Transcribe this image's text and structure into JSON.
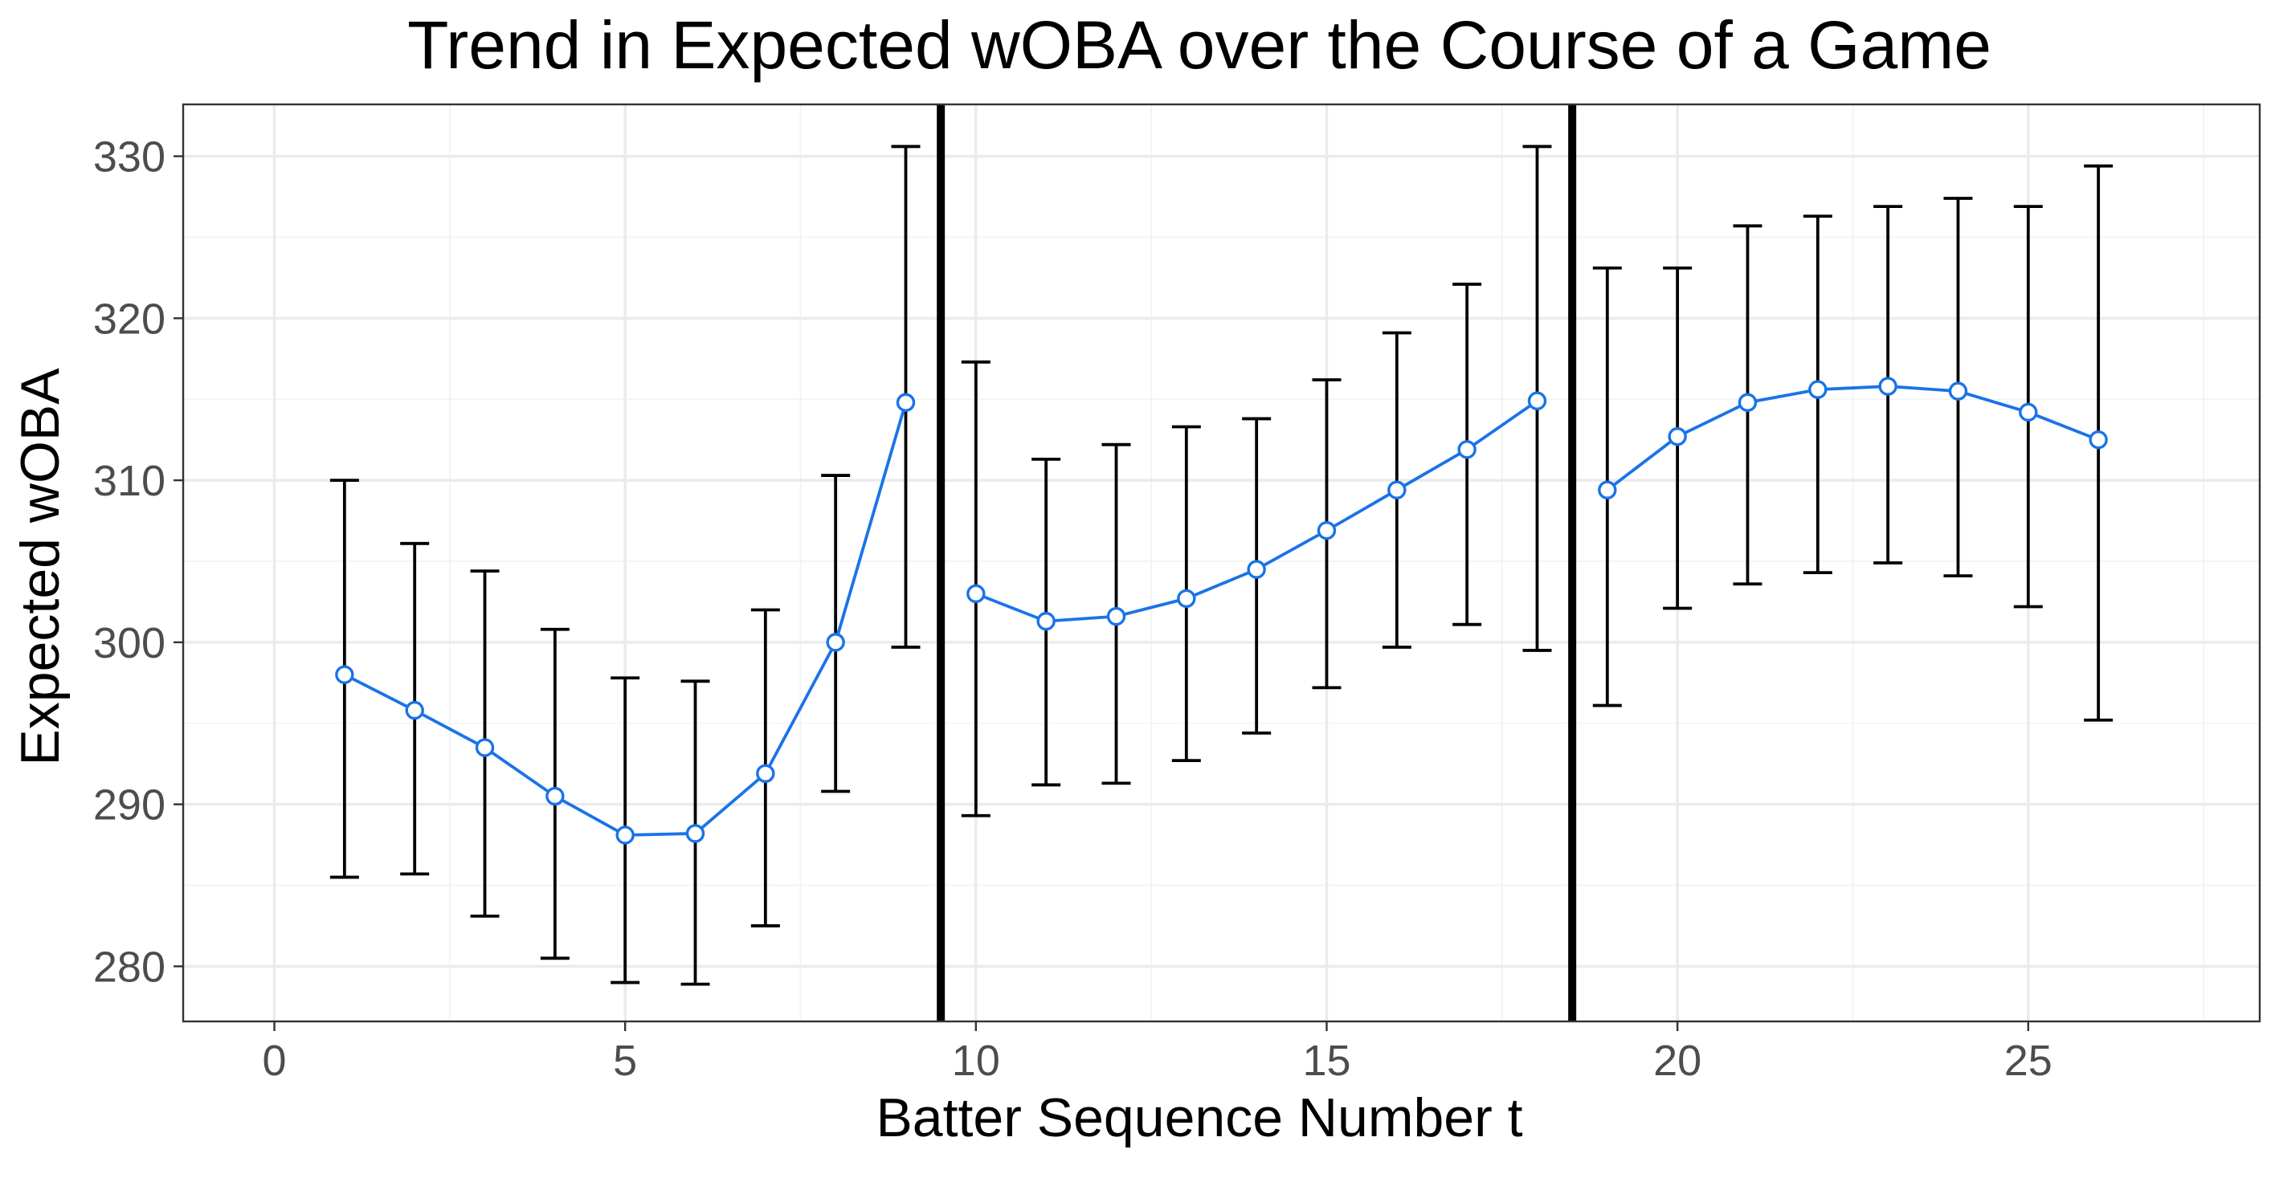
{
  "chart_data": {
    "type": "line",
    "title": "Trend in Expected wOBA over the Course of a Game",
    "xlabel": "Batter Sequence Number t",
    "ylabel": "Expected wOBA",
    "xlim": [
      -1.3,
      28.3
    ],
    "ylim": [
      276.6,
      333.2
    ],
    "x_ticks": [
      0,
      5,
      10,
      15,
      20,
      25
    ],
    "y_ticks": [
      280,
      290,
      300,
      310,
      320,
      330
    ],
    "grid": true,
    "legend": "none",
    "vlines": [
      9.5,
      18.5
    ],
    "series_color": "#1a73e8",
    "segments": [
      {
        "x": [
          1,
          2,
          3,
          4,
          5,
          6,
          7,
          8,
          9
        ],
        "y": [
          298.0,
          295.8,
          293.5,
          290.5,
          288.1,
          288.2,
          291.9,
          300.0,
          314.8
        ],
        "lower": [
          285.5,
          285.7,
          283.1,
          280.5,
          279.0,
          278.9,
          282.5,
          290.8,
          299.7
        ],
        "upper": [
          310.0,
          306.1,
          304.4,
          300.8,
          297.8,
          297.6,
          302.0,
          310.3,
          330.6
        ]
      },
      {
        "x": [
          10,
          11,
          12,
          13,
          14,
          15,
          16,
          17,
          18
        ],
        "y": [
          303.0,
          301.3,
          301.6,
          302.7,
          304.5,
          306.9,
          309.4,
          311.9,
          314.9
        ],
        "lower": [
          289.3,
          291.2,
          291.3,
          292.7,
          294.4,
          297.2,
          299.7,
          301.1,
          299.5
        ],
        "upper": [
          317.3,
          311.3,
          312.2,
          313.3,
          313.8,
          316.2,
          319.1,
          322.1,
          330.6
        ]
      },
      {
        "x": [
          19,
          20,
          21,
          22,
          23,
          24,
          25,
          26
        ],
        "y": [
          309.4,
          312.7,
          314.8,
          315.6,
          315.8,
          315.5,
          314.2,
          312.5
        ],
        "lower": [
          296.1,
          302.1,
          303.6,
          304.3,
          304.9,
          304.1,
          302.2,
          295.2
        ],
        "upper": [
          323.1,
          323.1,
          325.7,
          326.3,
          326.9,
          327.4,
          326.9,
          329.4
        ]
      }
    ]
  }
}
